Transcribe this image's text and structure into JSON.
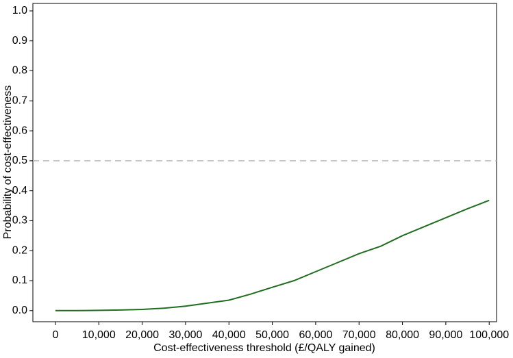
{
  "chart_data": {
    "type": "line",
    "x_label": "Cost-effectiveness threshold (£/QALY gained)",
    "y_label": "Probability of cost-effectiveness",
    "x": [
      0,
      5000,
      10000,
      15000,
      20000,
      25000,
      30000,
      35000,
      40000,
      45000,
      50000,
      55000,
      60000,
      65000,
      70000,
      75000,
      80000,
      85000,
      90000,
      95000,
      100000
    ],
    "values": [
      0,
      0,
      0.001,
      0.002,
      0.004,
      0.008,
      0.015,
      0.025,
      0.035,
      0.055,
      0.078,
      0.1,
      0.13,
      0.16,
      0.19,
      0.215,
      0.25,
      0.28,
      0.31,
      0.34,
      0.368
    ],
    "color": "#1f6e1f",
    "reference_line": {
      "y": 0.5,
      "color": "#bbbbbb"
    },
    "xlim": [
      -5200,
      101700
    ],
    "ylim": [
      -0.037,
      1.025
    ],
    "xticks": [
      0,
      {
        "value": 10000,
        "label": "10,000"
      },
      {
        "value": 20000,
        "label": "20,000"
      },
      {
        "value": 30000,
        "label": "30,000"
      },
      {
        "value": 40000,
        "label": "40,000"
      },
      {
        "value": 50000,
        "label": "50,000"
      },
      {
        "value": 60000,
        "label": "60,000"
      },
      {
        "value": 70000,
        "label": "70,000"
      },
      {
        "value": 80000,
        "label": "80,000"
      },
      {
        "value": 90000,
        "label": "90,000"
      },
      {
        "value": 100000,
        "label": "100,000"
      }
    ],
    "yticks": [
      {
        "value": 0,
        "label": "0.0"
      },
      0.1,
      0.2,
      0.3,
      0.4,
      0.5,
      0.6,
      0.7,
      0.8,
      0.9,
      {
        "value": 1,
        "label": "1.0"
      }
    ]
  }
}
